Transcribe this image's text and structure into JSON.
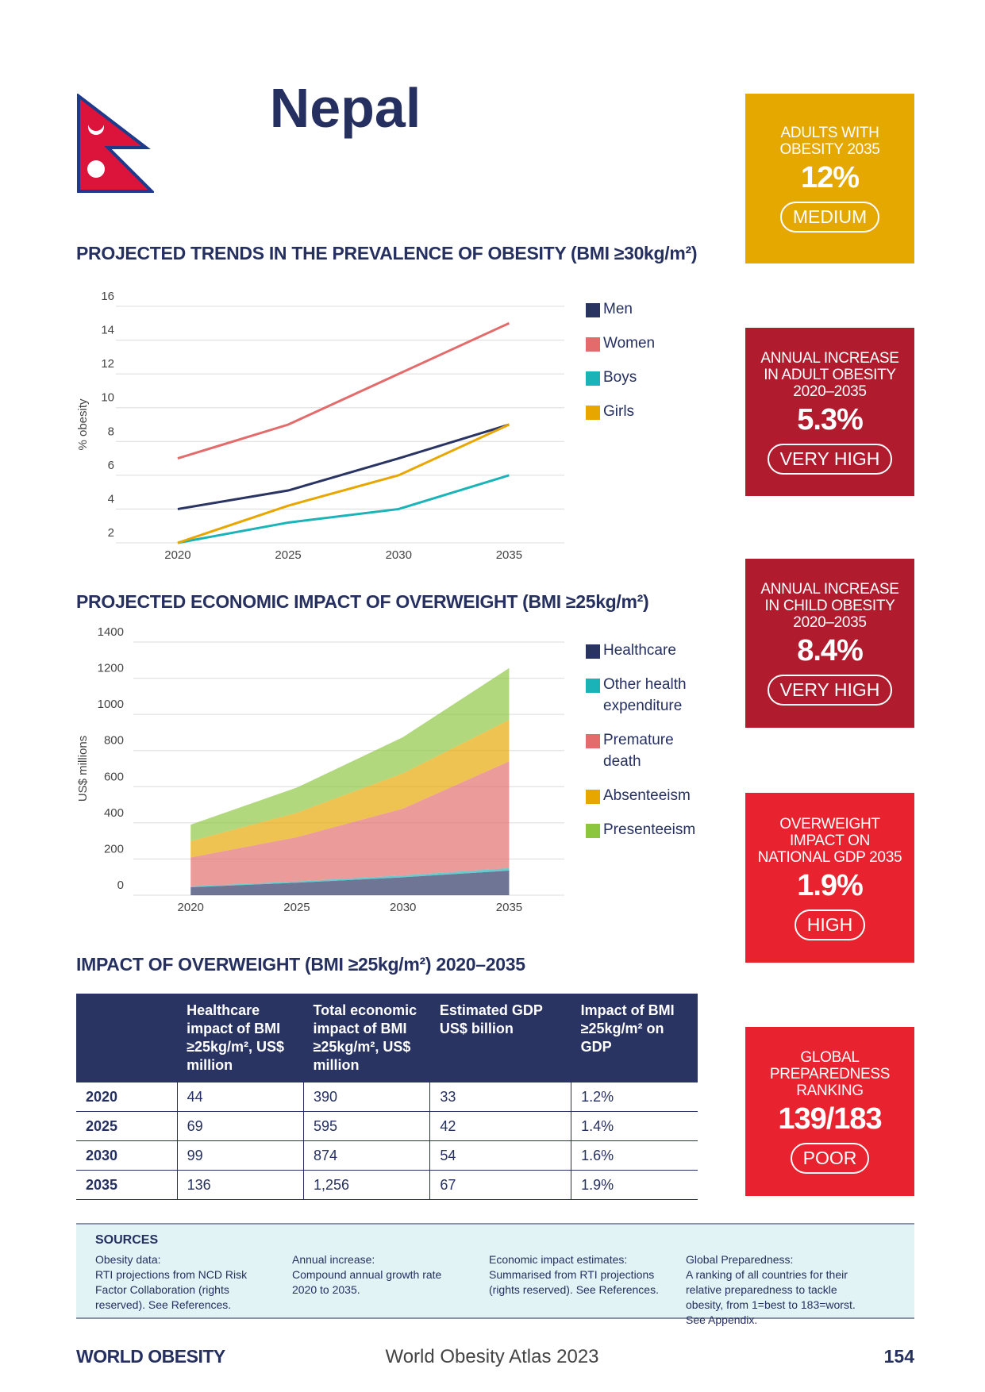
{
  "header": {
    "title": "Nepal"
  },
  "cards": [
    {
      "label": "ADULTS WITH OBESITY 2035",
      "value": "12%",
      "rating": "MEDIUM",
      "color": "#e5a800"
    },
    {
      "label": "ANNUAL INCREASE IN ADULT OBESITY 2020–2035",
      "value": "5.3%",
      "rating": "VERY HIGH",
      "color": "#b01c2e"
    },
    {
      "label": "ANNUAL INCREASE IN CHILD OBESITY 2020–2035",
      "value": "8.4%",
      "rating": "VERY HIGH",
      "color": "#b01c2e"
    },
    {
      "label": "OVERWEIGHT IMPACT ON NATIONAL GDP 2035",
      "value": "1.9%",
      "rating": "HIGH",
      "color": "#e8232f"
    },
    {
      "label": "GLOBAL PREPAREDNESS RANKING",
      "value": "139/183",
      "rating": "POOR",
      "color": "#e8232f"
    }
  ],
  "chart_data": [
    {
      "type": "line",
      "title": "PROJECTED TRENDS IN THE PREVALENCE OF OBESITY (BMI ≥30kg/m²)",
      "y_label": "% obesity",
      "x": [
        2020,
        2025,
        2030,
        2035
      ],
      "xlim": [
        2017.2,
        2037.5
      ],
      "xticks": [
        2020,
        2025,
        2030,
        2035
      ],
      "ylim": [
        2,
        16
      ],
      "yticks": [
        2,
        4,
        6,
        8,
        10,
        12,
        14,
        16
      ],
      "grid": true,
      "series": [
        {
          "name": "Men",
          "color": "#2a3463",
          "values": [
            4,
            5.1,
            7,
            9
          ]
        },
        {
          "name": "Women",
          "color": "#e36b6b",
          "values": [
            7,
            9,
            12,
            15
          ]
        },
        {
          "name": "Boys",
          "color": "#1ab3b8",
          "values": [
            2,
            3.2,
            4,
            6
          ]
        },
        {
          "name": "Girls",
          "color": "#e8a600",
          "values": [
            2,
            4.2,
            6,
            9
          ]
        }
      ]
    },
    {
      "type": "stacked_area",
      "title": "PROJECTED ECONOMIC IMPACT OF OVERWEIGHT (BMI ≥25kg/m²)",
      "y_label": "US$ millions",
      "x": [
        2020,
        2025,
        2030,
        2035
      ],
      "xlim": [
        2017.3,
        2037.6
      ],
      "xticks": [
        2020,
        2025,
        2030,
        2035
      ],
      "ylim": [
        0,
        1400
      ],
      "yticks": [
        0,
        200,
        400,
        600,
        800,
        1000,
        1200,
        1400
      ],
      "grid": true,
      "series": [
        {
          "name": "Healthcare",
          "color": "#2a3463",
          "values": [
            44,
            69,
            99,
            136
          ]
        },
        {
          "name": "Other health expenditure",
          "color": "#1ab3b8",
          "values": [
            5,
            7,
            10,
            14
          ]
        },
        {
          "name": "Premature death",
          "color": "#e36b6b",
          "values": [
            160,
            245,
            370,
            590
          ]
        },
        {
          "name": "Absenteeism",
          "color": "#e8a600",
          "values": [
            90,
            135,
            195,
            230
          ]
        },
        {
          "name": "Presenteeism",
          "color": "#8cc63f",
          "values": [
            91,
            139,
            200,
            286
          ]
        }
      ]
    }
  ],
  "table": {
    "title": "IMPACT OF OVERWEIGHT (BMI ≥25kg/m²) 2020–2035",
    "columns": [
      "Healthcare impact of BMI ≥25kg/m², US$ million",
      "Total economic impact of BMI ≥25kg/m², US$ million",
      "Estimated GDP US$ billion",
      "Impact of BMI ≥25kg/m² on GDP"
    ],
    "rows": [
      [
        "2020",
        "44",
        "390",
        "33",
        "1.2%"
      ],
      [
        "2025",
        "69",
        "595",
        "42",
        "1.4%"
      ],
      [
        "2030",
        "99",
        "874",
        "54",
        "1.6%"
      ],
      [
        "2035",
        "136",
        "1,256",
        "67",
        "1.9%"
      ]
    ]
  },
  "sources": {
    "heading": "SOURCES",
    "items": [
      {
        "title": "Obesity data:",
        "text": "RTI projections from NCD Risk Factor Collaboration (rights reserved). See References."
      },
      {
        "title": "Annual increase:",
        "text": "Compound annual growth rate 2020 to 2035."
      },
      {
        "title": "Economic impact estimates:",
        "text": "Summarised from RTI projections (rights reserved). See References."
      },
      {
        "title": "Global Preparedness:",
        "text": "A ranking of all countries for their relative preparedness to tackle obesity, from 1=best to 183=worst. See Appendix."
      }
    ]
  },
  "footer": {
    "logo": "WORLD OBESITY",
    "publication": "World Obesity Atlas 2023",
    "page": "154"
  }
}
